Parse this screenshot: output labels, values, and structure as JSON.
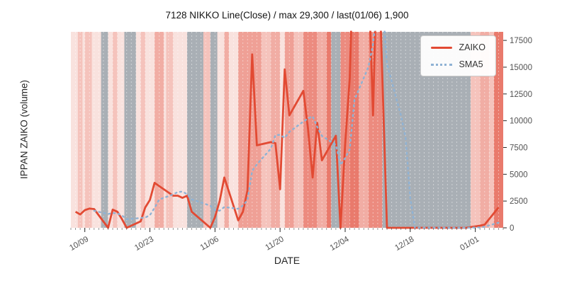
{
  "chart_data": {
    "type": "line",
    "title": "7128 NIKKO Line(Close) / max 29,300 / last(01/06) 1,900",
    "xlabel": "DATE",
    "ylabel": "IPPAN ZAIKO (volume)",
    "ylim": [
      0,
      18300
    ],
    "yticks": [
      0,
      2500,
      5000,
      7500,
      10000,
      12500,
      15000,
      17500
    ],
    "xticklabels": [
      "10/09",
      "10/23",
      "11/06",
      "11/20",
      "12/04",
      "12/18",
      "01/01"
    ],
    "x_start_date": "10/06",
    "x_span_days": 93,
    "grid": "per-day faint white dashed vertical lines",
    "legend_position": "upper right",
    "facts_from_title": {
      "max": 29300,
      "last_date": "01/06",
      "last_value": 1900
    },
    "dates": [
      "10/07",
      "10/08",
      "10/09",
      "10/10",
      "10/11",
      "10/14",
      "10/15",
      "10/16",
      "10/17",
      "10/18",
      "10/21",
      "10/22",
      "10/23",
      "10/24",
      "10/25",
      "10/28",
      "10/29",
      "10/30",
      "10/31",
      "11/01",
      "11/05",
      "11/06",
      "11/07",
      "11/08",
      "11/11",
      "11/12",
      "11/13",
      "11/14",
      "11/15",
      "11/18",
      "11/19",
      "11/20",
      "11/21",
      "11/22",
      "11/25",
      "11/26",
      "11/27",
      "11/28",
      "11/29",
      "12/02",
      "12/03",
      "12/04",
      "12/05",
      "12/06",
      "12/09",
      "12/10",
      "12/11",
      "12/12",
      "12/13",
      "12/16",
      "12/17",
      "12/18",
      "12/19",
      "12/20",
      "12/23",
      "12/24",
      "12/25",
      "12/26",
      "12/27",
      "12/30",
      "01/02",
      "01/03",
      "01/06"
    ],
    "series": [
      {
        "name": "ZAIKO",
        "color": "#e24a33",
        "line_style": "solid",
        "values": [
          1500,
          1250,
          1650,
          1800,
          1750,
          0,
          1700,
          1500,
          800,
          0,
          600,
          1900,
          2600,
          4200,
          3900,
          3000,
          3000,
          2800,
          3000,
          1500,
          0,
          1000,
          2500,
          4700,
          700,
          1500,
          3500,
          16200,
          7700,
          8000,
          7900,
          3600,
          14800,
          10500,
          12800,
          9300,
          4700,
          9800,
          6300,
          8600,
          0,
          7800,
          14000,
          29300,
          24000,
          10500,
          28000,
          14000,
          0,
          0,
          0,
          0,
          0,
          0,
          0,
          0,
          0,
          0,
          0,
          0,
          200,
          300,
          1900
        ]
      },
      {
        "name": "SMA5",
        "color": "#8fb2d4",
        "line_style": "dotted",
        "values": [
          null,
          null,
          null,
          null,
          1590,
          1290,
          1380,
          1350,
          1150,
          800,
          920,
          960,
          1180,
          1860,
          2640,
          3120,
          3340,
          3380,
          3140,
          2660,
          2060,
          1660,
          1600,
          1940,
          1780,
          2080,
          2580,
          5320,
          5920,
          7380,
          8660,
          8680,
          8400,
          8960,
          9920,
          10200,
          10420,
          9420,
          8580,
          7740,
          5880,
          6500,
          7340,
          11940,
          15020,
          17120,
          21160,
          21160,
          15300,
          10500,
          8400,
          2800,
          0,
          0,
          0,
          0,
          0,
          0,
          0,
          0,
          40,
          100,
          480
        ]
      }
    ],
    "background": {
      "base": "#f9e2de",
      "band_units": "day offsets from 10/06",
      "bands": [
        {
          "from": 1.5,
          "to": 2.5,
          "color": "#f5c3bc"
        },
        {
          "from": 3,
          "to": 4.5,
          "color": "#f5c3bc"
        },
        {
          "from": 6.5,
          "to": 8,
          "color": "#a9afb5"
        },
        {
          "from": 9,
          "to": 10,
          "color": "#f5c3bc"
        },
        {
          "from": 11.5,
          "to": 14,
          "color": "#a9afb5"
        },
        {
          "from": 15,
          "to": 16,
          "color": "#f5c3bc"
        },
        {
          "from": 18,
          "to": 20,
          "color": "#f1ada4"
        },
        {
          "from": 20.5,
          "to": 22,
          "color": "#f5c3bc"
        },
        {
          "from": 25,
          "to": 28.5,
          "color": "#a9afb5"
        },
        {
          "from": 28.5,
          "to": 30,
          "color": "#f5c3bc"
        },
        {
          "from": 30,
          "to": 31.5,
          "color": "#a9afb5"
        },
        {
          "from": 33,
          "to": 34,
          "color": "#f1ada4"
        },
        {
          "from": 36,
          "to": 41,
          "color": "#efa096"
        },
        {
          "from": 41,
          "to": 43,
          "color": "#f5c3bc"
        },
        {
          "from": 43,
          "to": 45,
          "color": "#f1ada4"
        },
        {
          "from": 46,
          "to": 48,
          "color": "#efa096"
        },
        {
          "from": 48,
          "to": 50,
          "color": "#f5c3bc"
        },
        {
          "from": 50,
          "to": 53,
          "color": "#ec8b7f"
        },
        {
          "from": 53,
          "to": 55,
          "color": "#f1ada4"
        },
        {
          "from": 55,
          "to": 56,
          "color": "#e97a6c"
        },
        {
          "from": 56,
          "to": 58,
          "color": "#a9afb5"
        },
        {
          "from": 58,
          "to": 60,
          "color": "#ec8b7f"
        },
        {
          "from": 60,
          "to": 62,
          "color": "#e97a6c"
        },
        {
          "from": 62,
          "to": 64,
          "color": "#f1ada4"
        },
        {
          "from": 64,
          "to": 67,
          "color": "#ec8b7f"
        },
        {
          "from": 67,
          "to": 86,
          "color": "#a9afb5"
        },
        {
          "from": 86,
          "to": 88,
          "color": "#f5c3bc"
        },
        {
          "from": 88,
          "to": 90,
          "color": "#f1ada4"
        },
        {
          "from": 90,
          "to": 91,
          "color": "#f5c3bc"
        },
        {
          "from": 91,
          "to": 93,
          "color": "#e97a6c"
        }
      ]
    },
    "style": {
      "tick_text_color": "#525252",
      "tick_mark_color": "#262626"
    }
  }
}
